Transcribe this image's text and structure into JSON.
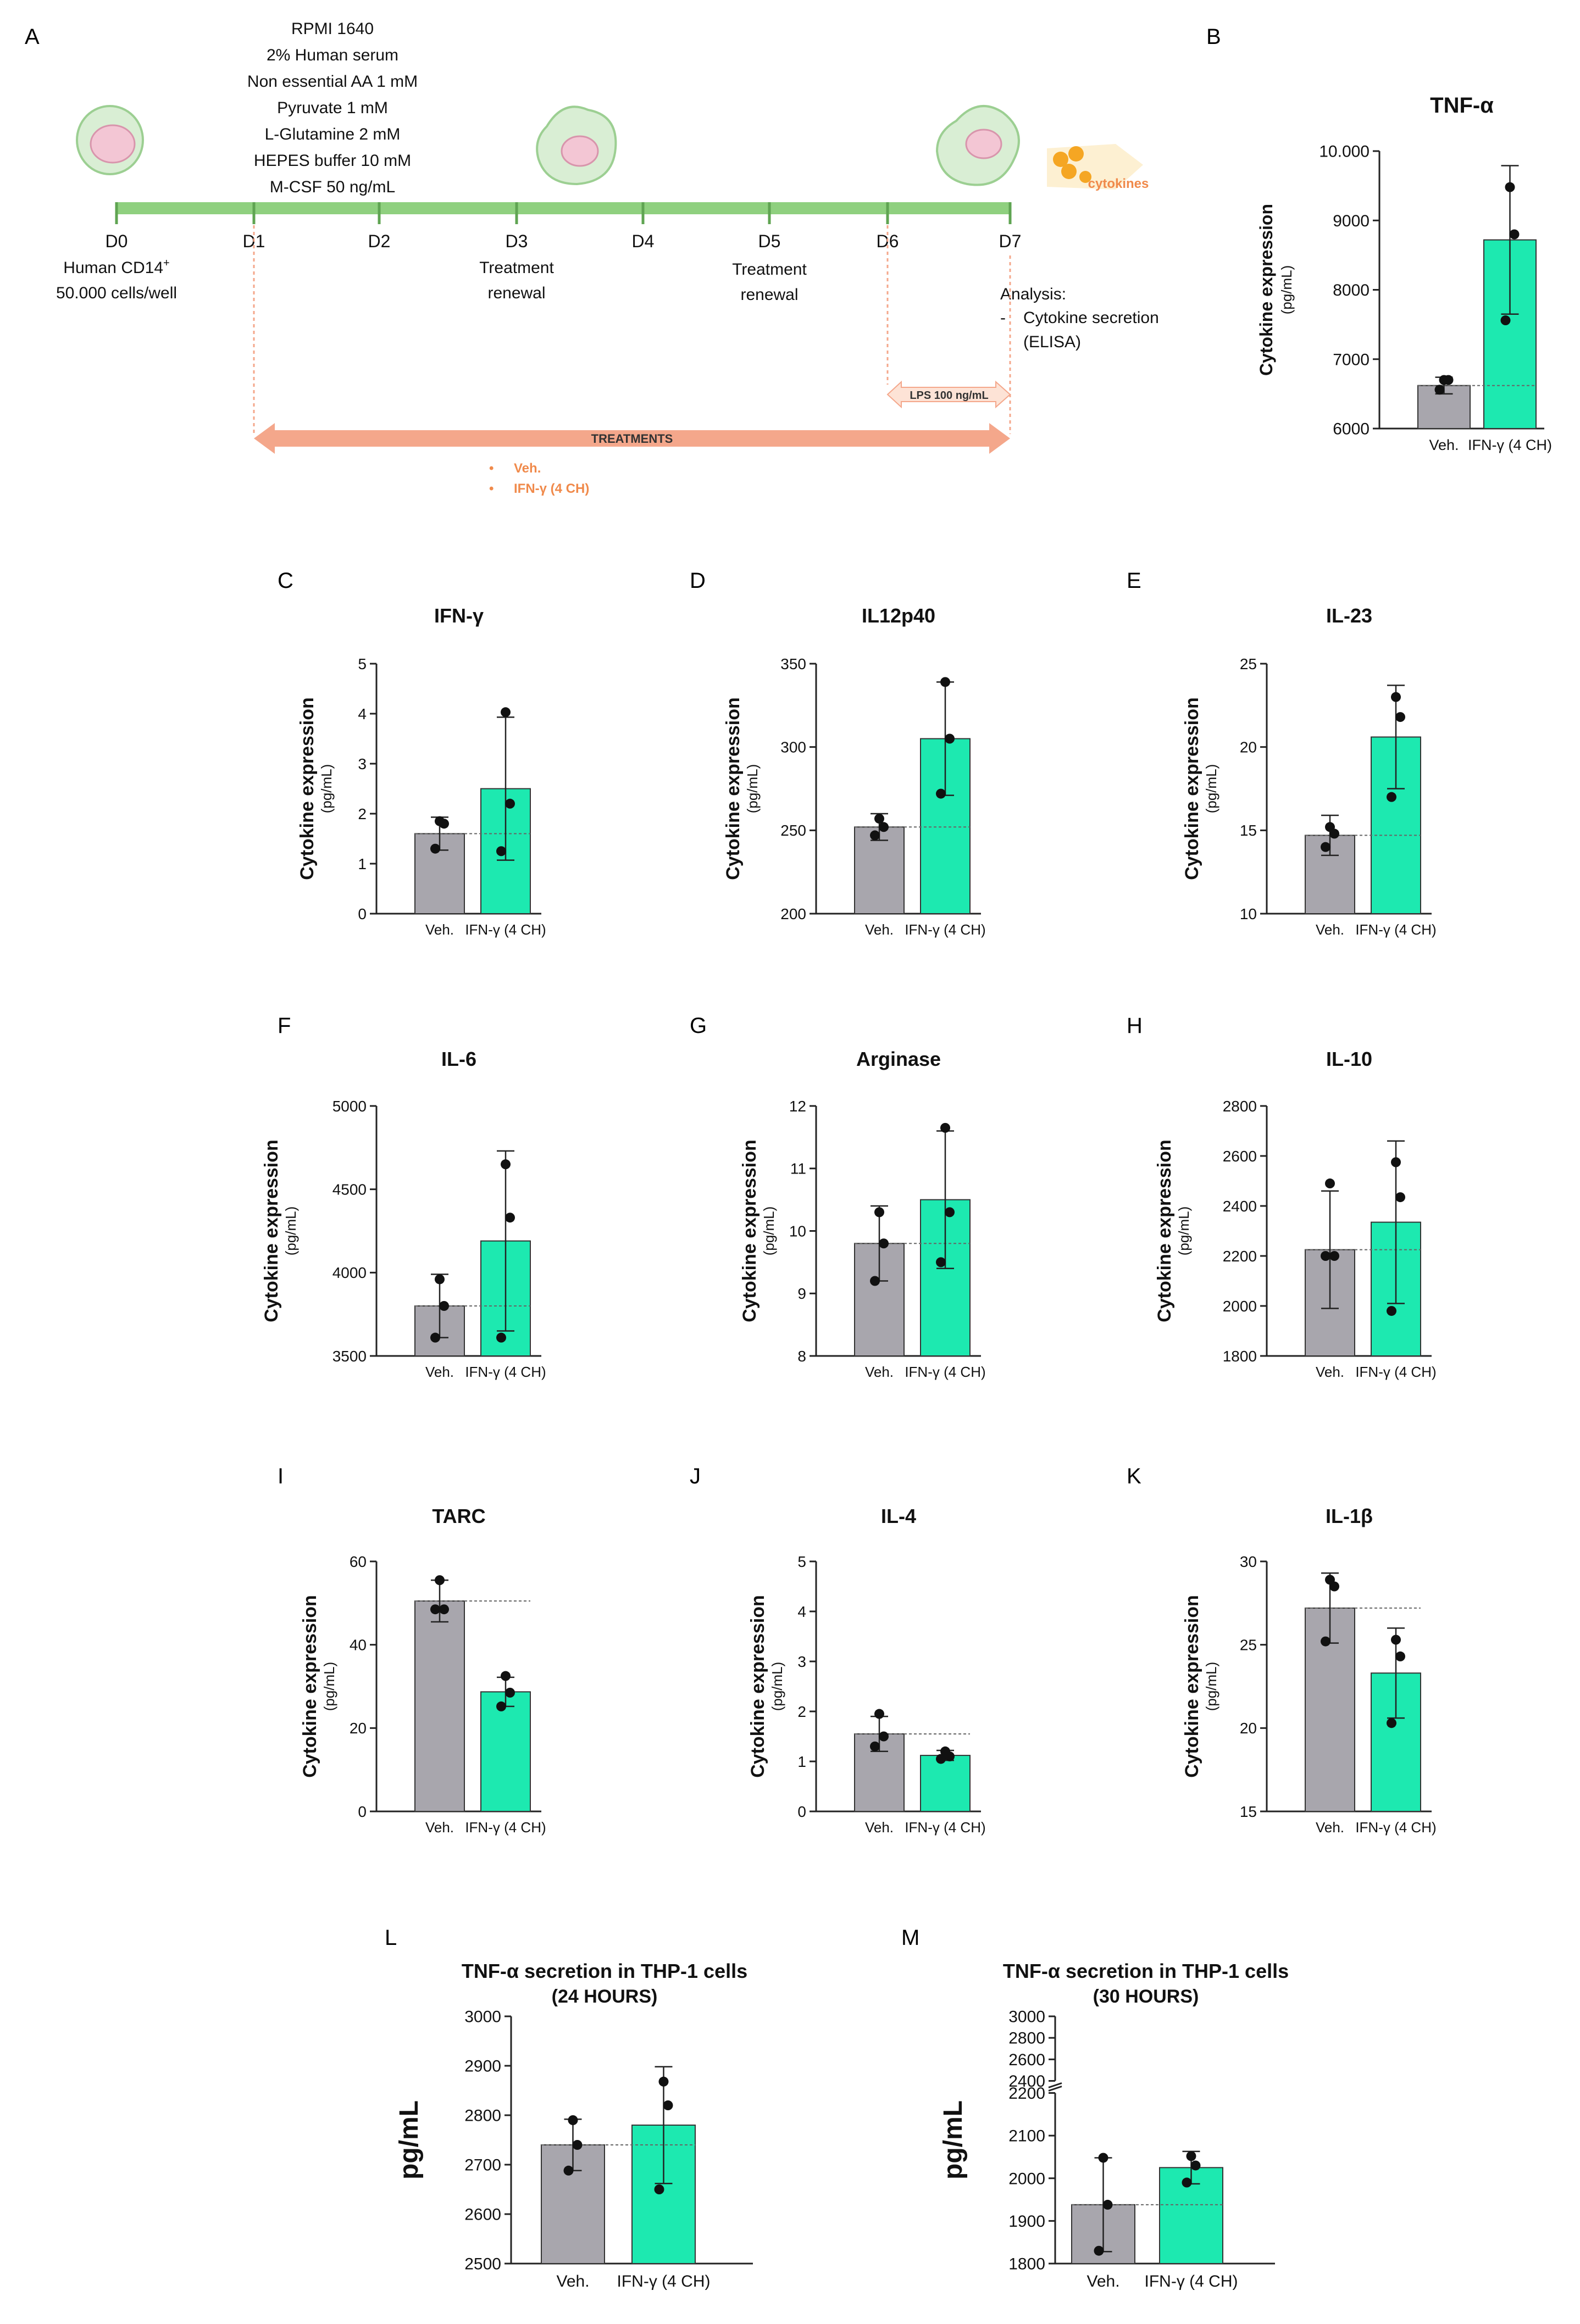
{
  "panel_letters": {
    "A": "A",
    "B": "B",
    "C": "C",
    "D": "D",
    "E": "E",
    "F": "F",
    "G": "G",
    "H": "H",
    "I": "I",
    "J": "J",
    "K": "K",
    "L": "L",
    "M": "M"
  },
  "timeline": {
    "medium": [
      "RPMI 1640",
      "2% Human serum",
      "Non essential AA 1 mM",
      "Pyruvate 1 mM",
      "L-Glutamine 2 mM",
      "HEPES buffer 10 mM",
      "M-CSF 50 ng/mL"
    ],
    "days": [
      "D0",
      "D1",
      "D2",
      "D3",
      "D4",
      "D5",
      "D6",
      "D7"
    ],
    "d0_line1": "Human CD14",
    "d0_sup": "+",
    "d0_line2": "50.000 cells/well",
    "d3_line1": "Treatment",
    "d3_line2": "renewal",
    "d5_line1": "Treatment",
    "d5_line2": "renewal",
    "analysis_title": "Analysis:",
    "analysis_dash": "-",
    "analysis_line1": "Cytokine secretion",
    "analysis_line2": "(ELISA)",
    "lps_label": "LPS 100 ng/mL",
    "treatments_label": "TREATMENTS",
    "treatment_items": [
      "Veh.",
      "IFN-γ (4 CH)"
    ],
    "cytokines_label": "cytokines",
    "colors": {
      "timeline": "#8fd07f",
      "treatments": "#f4a78b",
      "orange_text": "#f08a4b",
      "lps": "#fde3d6"
    }
  },
  "chart_data": [
    {
      "id": "B",
      "type": "bar",
      "title": "TNF-α",
      "ylabel": "Cytokine expression",
      "ylabel_unit": "(pg/mL)",
      "categories": [
        "Veh.",
        "IFN-γ (4 CH)"
      ],
      "values": [
        6620,
        8720
      ],
      "errors": [
        120,
        1070
      ],
      "points": [
        [
          6700,
          6700,
          6560
        ],
        [
          9480,
          8800,
          7560
        ]
      ],
      "ylim": [
        6000,
        10000
      ],
      "yticks": [
        6000,
        7000,
        8000,
        9000,
        10000
      ],
      "yticklabels": [
        "6000",
        "7000",
        "8000",
        "9000",
        "10.000"
      ]
    },
    {
      "id": "C",
      "type": "bar",
      "title": "IFN-γ",
      "ylabel": "Cytokine expression",
      "ylabel_unit": "(pg/mL)",
      "categories": [
        "Veh.",
        "IFN-γ (4 CH)"
      ],
      "values": [
        1.6,
        2.5
      ],
      "errors": [
        0.33,
        1.43
      ],
      "points": [
        [
          1.85,
          1.8,
          1.3
        ],
        [
          4.03,
          2.2,
          1.25
        ]
      ],
      "ylim": [
        0,
        5
      ],
      "yticks": [
        0,
        1,
        2,
        3,
        4,
        5
      ],
      "yticklabels": [
        "0",
        "1",
        "2",
        "3",
        "4",
        "5"
      ]
    },
    {
      "id": "D",
      "type": "bar",
      "title": "IL12p40",
      "ylabel": "Cytokine expression",
      "ylabel_unit": "(pg/mL)",
      "categories": [
        "Veh.",
        "IFN-γ (4 CH)"
      ],
      "values": [
        252,
        305
      ],
      "errors": [
        8,
        34
      ],
      "points": [
        [
          257,
          252,
          247
        ],
        [
          339,
          305,
          272
        ]
      ],
      "ylim": [
        200,
        350
      ],
      "yticks": [
        200,
        250,
        300,
        350
      ],
      "yticklabels": [
        "200",
        "250",
        "300",
        "350"
      ]
    },
    {
      "id": "E",
      "type": "bar",
      "title": "IL-23",
      "ylabel": "Cytokine expression",
      "ylabel_unit": "(pg/mL)",
      "categories": [
        "Veh.",
        "IFN-γ (4 CH)"
      ],
      "values": [
        14.7,
        20.6
      ],
      "errors": [
        1.2,
        3.1
      ],
      "points": [
        [
          15.2,
          14.8,
          14.0
        ],
        [
          23.0,
          21.8,
          17.0
        ]
      ],
      "ylim": [
        10,
        25
      ],
      "yticks": [
        10,
        15,
        20,
        25
      ],
      "yticklabels": [
        "10",
        "15",
        "20",
        "25"
      ]
    },
    {
      "id": "F",
      "type": "bar",
      "title": "IL-6",
      "ylabel": "Cytokine expression",
      "ylabel_unit": "(pg/mL)",
      "categories": [
        "Veh.",
        "IFN-γ (4 CH)"
      ],
      "values": [
        3800,
        4190
      ],
      "errors": [
        190,
        540
      ],
      "points": [
        [
          3960,
          3800,
          3610
        ],
        [
          4650,
          4330,
          3610
        ]
      ],
      "ylim": [
        3500,
        5000
      ],
      "yticks": [
        3500,
        4000,
        4500,
        5000
      ],
      "yticklabels": [
        "3500",
        "4000",
        "4500",
        "5000"
      ]
    },
    {
      "id": "G",
      "type": "bar",
      "title": "Arginase",
      "ylabel": "Cytokine expression",
      "ylabel_unit": "(pg/mL)",
      "categories": [
        "Veh.",
        "IFN-γ (4 CH)"
      ],
      "values": [
        9.8,
        10.5
      ],
      "errors": [
        0.6,
        1.1
      ],
      "points": [
        [
          10.3,
          9.8,
          9.2
        ],
        [
          11.65,
          10.3,
          9.5
        ]
      ],
      "ylim": [
        8,
        12
      ],
      "yticks": [
        8,
        9,
        10,
        11,
        12
      ],
      "yticklabels": [
        "8",
        "9",
        "10",
        "11",
        "12"
      ]
    },
    {
      "id": "H",
      "type": "bar",
      "title": "IL-10",
      "ylabel": "Cytokine expression",
      "ylabel_unit": "(pg/mL)",
      "categories": [
        "Veh.",
        "IFN-γ (4 CH)"
      ],
      "values": [
        2225,
        2335
      ],
      "errors": [
        235,
        325
      ],
      "points": [
        [
          2490,
          2200,
          2200
        ],
        [
          2575,
          2435,
          1980
        ]
      ],
      "ylim": [
        1800,
        2800
      ],
      "yticks": [
        1800,
        2000,
        2200,
        2400,
        2600,
        2800
      ],
      "yticklabels": [
        "1800",
        "2000",
        "2200",
        "2400",
        "2600",
        "2800"
      ]
    },
    {
      "id": "I",
      "type": "bar",
      "title": "TARC",
      "ylabel": "Cytokine expression",
      "ylabel_unit": "(pg/mL)",
      "categories": [
        "Veh.",
        "IFN-γ (4 CH)"
      ],
      "values": [
        50.5,
        28.7
      ],
      "errors": [
        5,
        3.5
      ],
      "points": [
        [
          55.5,
          48.5,
          48.5
        ],
        [
          32.5,
          28.5,
          25.2
        ]
      ],
      "ylim": [
        0,
        60
      ],
      "yticks": [
        0,
        20,
        40,
        60
      ],
      "yticklabels": [
        "0",
        "20",
        "40",
        "60"
      ]
    },
    {
      "id": "J",
      "type": "bar",
      "title": "IL-4",
      "ylabel": "Cytokine expression",
      "ylabel_unit": "(pg/mL)",
      "categories": [
        "Veh.",
        "IFN-γ (4 CH)"
      ],
      "values": [
        1.55,
        1.12
      ],
      "errors": [
        0.35,
        0.1
      ],
      "points": [
        [
          1.95,
          1.5,
          1.3
        ],
        [
          1.2,
          1.1,
          1.05
        ]
      ],
      "ylim": [
        0,
        5
      ],
      "yticks": [
        0,
        1,
        2,
        3,
        4,
        5
      ],
      "yticklabels": [
        "0",
        "1",
        "2",
        "3",
        "4",
        "5"
      ]
    },
    {
      "id": "K",
      "type": "bar",
      "title": "IL-1β",
      "ylabel": "Cytokine expression",
      "ylabel_unit": "(pg/mL)",
      "categories": [
        "Veh.",
        "IFN-γ (4 CH)"
      ],
      "values": [
        27.2,
        23.3
      ],
      "errors": [
        2.1,
        2.7
      ],
      "points": [
        [
          28.9,
          28.5,
          25.2
        ],
        [
          25.3,
          24.3,
          20.3
        ]
      ],
      "ylim": [
        15,
        30
      ],
      "yticks": [
        15,
        20,
        25,
        30
      ],
      "yticklabels": [
        "15",
        "20",
        "25",
        "30"
      ]
    },
    {
      "id": "L",
      "type": "bar",
      "title": "TNF-α secretion in THP-1 cells",
      "subtitle": "(24 HOURS)",
      "ylabel": "pg/mL",
      "categories": [
        "Veh.",
        "IFN-γ (4 CH)"
      ],
      "values": [
        2740,
        2780
      ],
      "errors": [
        52,
        118
      ],
      "points": [
        [
          2790,
          2740,
          2688
        ],
        [
          2868,
          2820,
          2650
        ]
      ],
      "ylim": [
        2500,
        3000
      ],
      "yticks": [
        2500,
        2600,
        2700,
        2800,
        2900,
        3000
      ],
      "yticklabels": [
        "2500",
        "2600",
        "2700",
        "2800",
        "2900",
        "3000"
      ]
    },
    {
      "id": "M",
      "type": "bar",
      "title": "TNF-α secretion in THP-1 cells",
      "subtitle": "(30 HOURS)",
      "ylabel": "pg/mL",
      "categories": [
        "Veh.",
        "IFN-γ (4 CH)"
      ],
      "values": [
        1938,
        2025
      ],
      "errors": [
        110,
        38
      ],
      "points": [
        [
          2048,
          1938,
          1830
        ],
        [
          2052,
          2030,
          1990
        ]
      ],
      "ylim": [
        1800,
        3000
      ],
      "axis_break": [
        2200,
        2400
      ],
      "yticks": [
        1800,
        1900,
        2000,
        2100,
        2200,
        2400,
        2600,
        2800,
        3000
      ],
      "yticklabels": [
        "1800",
        "1900",
        "2000",
        "2100",
        "2200",
        "2400",
        "2600",
        "2800",
        "3000"
      ]
    }
  ],
  "colors": {
    "veh_bar": "#a8a6ad",
    "ifn_bar": "#1de9b0",
    "points": "#111111",
    "axis": "#222222",
    "ref_line": "#666666"
  }
}
